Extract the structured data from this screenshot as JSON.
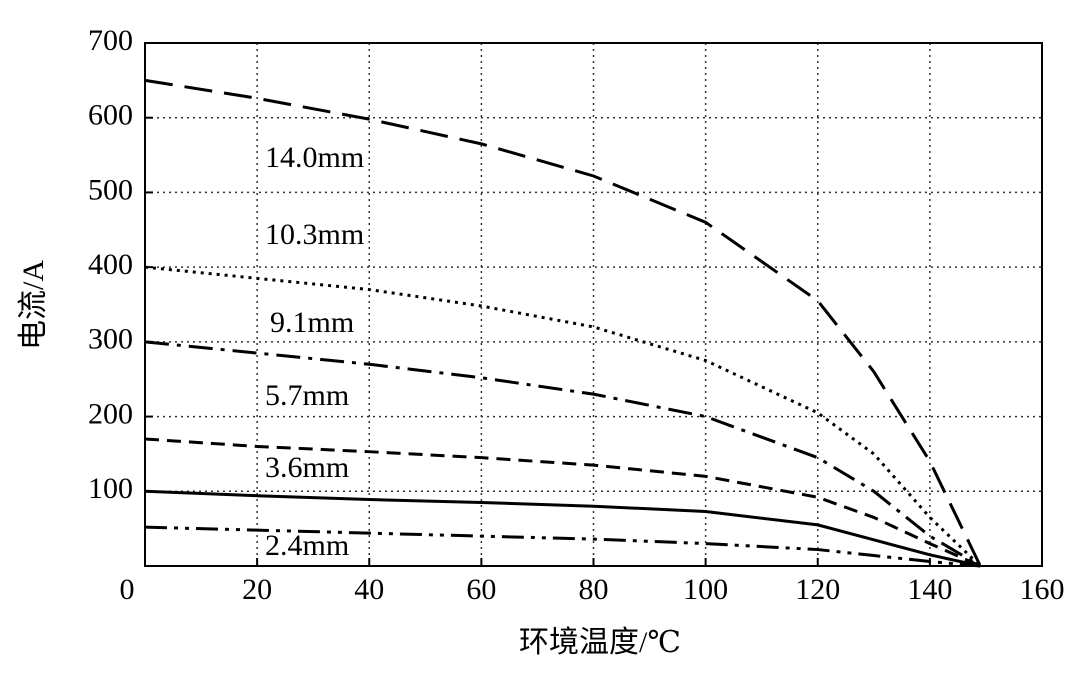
{
  "chart_data": {
    "type": "line",
    "x_label": "环境温度/℃",
    "y_label": "电流/A",
    "x": [
      0,
      20,
      40,
      60,
      80,
      100,
      120,
      130,
      140,
      149
    ],
    "series": [
      {
        "name": "14.0mm",
        "color": "#000000",
        "dash": "long-dash",
        "values": [
          650,
          626,
          598,
          565,
          522,
          460,
          355,
          260,
          140,
          0
        ]
      },
      {
        "name": "10.3mm",
        "color": "#000000",
        "dash": "dot",
        "values": [
          400,
          385,
          370,
          348,
          320,
          275,
          205,
          150,
          65,
          0
        ]
      },
      {
        "name": "9.1mm",
        "color": "#000000",
        "dash": "dash-dot",
        "values": [
          300,
          285,
          270,
          252,
          230,
          200,
          145,
          100,
          40,
          0
        ]
      },
      {
        "name": "5.7mm",
        "color": "#000000",
        "dash": "dash",
        "values": [
          170,
          160,
          153,
          145,
          135,
          120,
          92,
          65,
          30,
          0
        ]
      },
      {
        "name": "3.6mm",
        "color": "#000000",
        "dash": "solid",
        "values": [
          100,
          94,
          89,
          85,
          80,
          73,
          55,
          35,
          15,
          0
        ]
      },
      {
        "name": "2.4mm",
        "color": "#000000",
        "dash": "dash-dot-dot",
        "values": [
          52,
          48,
          44,
          40,
          36,
          30,
          22,
          14,
          6,
          0
        ]
      }
    ],
    "xlim": [
      0,
      160
    ],
    "ylim": [
      0,
      700
    ],
    "xticks": [
      0,
      20,
      40,
      60,
      80,
      100,
      120,
      140,
      160
    ],
    "yticks": [
      100,
      200,
      300,
      400,
      500,
      600,
      700
    ],
    "grid": true
  }
}
